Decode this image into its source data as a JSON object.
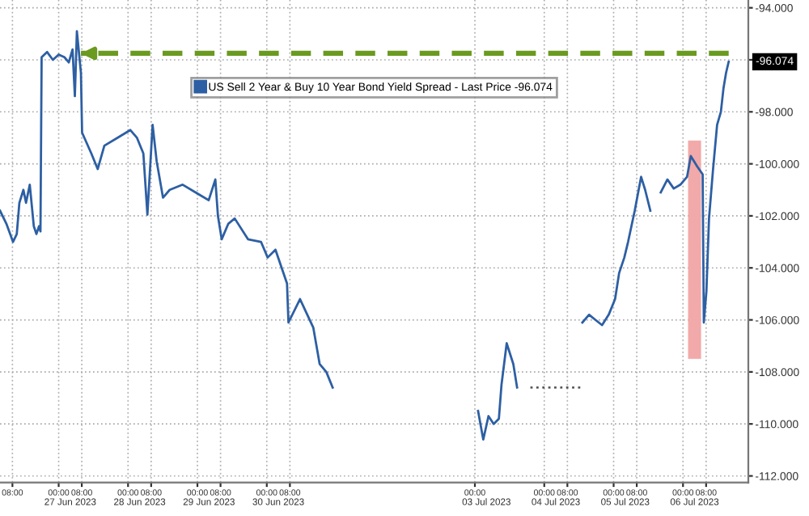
{
  "chart_data": {
    "type": "line",
    "ylim": [
      -112.25,
      -93.7
    ],
    "yticks": [
      {
        "value": -94,
        "label": "-94.000"
      },
      {
        "value": -96,
        "label": null
      },
      {
        "value": -98,
        "label": "-98.000"
      },
      {
        "value": -100,
        "label": "-100.000"
      },
      {
        "value": -102,
        "label": "-102.000"
      },
      {
        "value": -104,
        "label": "-104.000"
      },
      {
        "value": -106,
        "label": "-106.000"
      },
      {
        "value": -108,
        "label": "-108.000"
      },
      {
        "value": -110,
        "label": "-110.000"
      },
      {
        "value": -112,
        "label": "-112.000"
      }
    ],
    "xlim": [
      "2023-06-26T03:42",
      "2023-07-06T22:36"
    ],
    "xticks": [
      {
        "value": "2023-06-26T08:00",
        "label": "08:00"
      },
      {
        "value": "2023-06-27T00:00",
        "label": "00:00"
      },
      {
        "value": "2023-06-27T08:00",
        "label": "08:00"
      },
      {
        "value": "2023-06-28T00:00",
        "label": "00:00"
      },
      {
        "value": "2023-06-28T08:00",
        "label": "08:00"
      },
      {
        "value": "2023-06-29T00:00",
        "label": "00:00"
      },
      {
        "value": "2023-06-29T08:00",
        "label": "08:00"
      },
      {
        "value": "2023-06-30T00:00",
        "label": "00:00"
      },
      {
        "value": "2023-06-30T08:00",
        "label": "08:00"
      },
      {
        "value": "2023-07-03T00:00",
        "label": "00:00"
      },
      {
        "value": "2023-07-04T00:00",
        "label": "00:00"
      },
      {
        "value": "2023-07-04T08:00",
        "label": "08:00"
      },
      {
        "value": "2023-07-05T00:00",
        "label": "00:00"
      },
      {
        "value": "2023-07-05T08:00",
        "label": "08:00"
      },
      {
        "value": "2023-07-06T00:00",
        "label": "00:00"
      },
      {
        "value": "2023-07-06T08:00",
        "label": "08:00"
      }
    ],
    "x2lim": [
      "2023-06-26T03:42",
      "2023-07-06T22:36"
    ],
    "x2ticks": [
      {
        "value": "2023-06-27T04:00",
        "label": "27 Jun 2023"
      },
      {
        "value": "2023-06-28T04:00",
        "label": "28 Jun 2023"
      },
      {
        "value": "2023-06-29T04:00",
        "label": "29 Jun 2023"
      },
      {
        "value": "2023-06-30T04:00",
        "label": "30 Jun 2023"
      },
      {
        "value": "2023-07-03T04:00",
        "label": "03 Jul 2023"
      },
      {
        "value": "2023-07-04T04:00",
        "label": "04 Jul 2023"
      },
      {
        "value": "2023-07-05T04:00",
        "label": "05 Jul 2023"
      },
      {
        "value": "2023-07-06T04:00",
        "label": "06 Jul 2023"
      }
    ],
    "grid": true,
    "legend": "top",
    "series": [
      {
        "type": "bar",
        "color": "#f2a9a9",
        "x": [
          "2023-07-06T04:00"
        ],
        "base": [
          -107.5
        ],
        "values": [
          8.4
        ]
      },
      {
        "name": "US Sell 2 Year & Buy 10 Year Bond Yield Spread - Last Price -96.074",
        "color": "#2d5fa3",
        "line_style": "solid",
        "x": [
          "2023-06-26T03:42",
          "2023-06-26T05:54",
          "2023-06-26T08:12",
          "2023-06-26T09:30",
          "2023-06-26T10:24",
          "2023-06-26T11:48",
          "2023-06-26T12:42",
          "2023-06-26T14:00",
          "2023-06-26T15:24",
          "2023-06-26T16:18",
          "2023-06-26T17:12",
          "2023-06-26T17:42",
          "2023-06-26T18:06",
          "2023-06-26T20:00",
          "2023-06-26T22:00",
          "2023-06-27T00:00",
          "2023-06-27T02:00",
          "2023-06-27T03:30",
          "2023-06-27T04:48",
          "2023-06-27T05:36",
          "2023-06-27T06:18",
          "2023-06-27T07:42",
          "2023-06-27T08:06",
          "2023-06-27T11:18",
          "2023-06-27T13:30",
          "2023-06-27T15:48",
          "2023-06-27T20:18",
          "2023-06-28T00:48",
          "2023-06-28T03:06",
          "2023-06-28T05:18",
          "2023-06-28T06:42",
          "2023-06-28T08:30",
          "2023-06-28T09:54",
          "2023-06-28T12:06",
          "2023-06-28T14:24",
          "2023-06-28T18:54",
          "2023-06-28T23:24",
          "2023-06-29T03:54",
          "2023-06-29T06:12",
          "2023-06-29T07:06",
          "2023-06-29T08:24",
          "2023-06-29T10:42",
          "2023-06-29T12:54",
          "2023-06-29T17:30",
          "2023-06-29T22:00",
          "2023-06-30T00:18",
          "2023-06-30T03:00",
          "2023-06-30T07:00",
          "2023-06-30T07:30",
          "2023-06-30T11:30",
          "2023-06-30T16:06",
          "2023-06-30T18:18",
          "2023-06-30T20:36",
          "2023-06-30T22:48",
          "2023-07-01T12:00",
          "2023-07-03T01:06",
          "2023-07-03T02:24",
          "2023-07-03T02:54",
          "2023-07-03T04:42",
          "2023-07-03T06:30",
          "2023-07-03T08:18",
          "2023-07-03T09:12",
          "2023-07-03T11:00",
          "2023-07-03T13:18",
          "2023-07-03T14:36",
          "2023-07-04T02:00",
          "2023-07-04T13:12",
          "2023-07-04T15:30",
          "2023-07-04T17:42",
          "2023-07-04T20:00",
          "2023-07-04T22:18",
          "2023-07-05T00:30",
          "2023-07-05T01:54",
          "2023-07-05T03:42",
          "2023-07-05T05:00",
          "2023-07-05T07:18",
          "2023-07-05T09:30",
          "2023-07-05T10:54",
          "2023-07-05T12:42",
          "2023-07-05T14:30",
          "2023-07-05T16:18",
          "2023-07-05T18:36",
          "2023-07-05T20:48",
          "2023-07-05T23:06",
          "2023-07-06T01:24",
          "2023-07-06T02:42",
          "2023-07-06T04:54",
          "2023-07-06T06:48",
          "2023-07-06T07:12",
          "2023-07-06T08:06",
          "2023-07-06T09:00",
          "2023-07-06T10:24",
          "2023-07-06T11:48",
          "2023-07-06T13:06",
          "2023-07-06T14:00",
          "2023-07-06T14:54",
          "2023-07-06T15:48"
        ],
        "values": [
          -101.8,
          -102.3,
          -103.0,
          -102.7,
          -101.5,
          -101.0,
          -101.5,
          -100.8,
          -102.4,
          -102.7,
          -102.4,
          -102.6,
          -95.9,
          -95.7,
          -96.0,
          -95.8,
          -95.9,
          -96.1,
          -95.6,
          -97.4,
          -94.9,
          -96.5,
          -98.8,
          -99.6,
          -100.2,
          -99.3,
          -99.0,
          -98.7,
          -99.0,
          -99.6,
          -101.95,
          -98.5,
          -99.9,
          -101.3,
          -101.0,
          -100.8,
          -101.1,
          -101.4,
          -100.6,
          -102.0,
          -102.9,
          -102.3,
          -102.1,
          -102.9,
          -103.0,
          -103.6,
          -103.3,
          -104.6,
          -106.1,
          -105.2,
          -106.3,
          -107.7,
          -108.0,
          -108.6,
          null,
          -109.5,
          -110.3,
          -110.6,
          -109.7,
          -110.0,
          -109.8,
          -108.5,
          -106.9,
          -107.7,
          -108.6,
          null,
          -106.1,
          -105.8,
          -106.0,
          -106.2,
          -105.8,
          -105.2,
          -104.2,
          -103.6,
          -103.0,
          -101.8,
          -100.5,
          -101.0,
          -101.8,
          null,
          -101.1,
          -100.6,
          -100.95,
          -100.8,
          -100.5,
          -99.7,
          -100.1,
          -100.4,
          -106.1,
          -104.9,
          -102.1,
          -100.2,
          -98.5,
          -98.0,
          -97.1,
          -96.5,
          -96.074
        ]
      },
      {
        "color": "#555555",
        "line_style": "dotted",
        "x": [
          "2023-07-03T19:12",
          "2023-07-04T13:12"
        ],
        "values": [
          -108.6,
          -108.6
        ]
      },
      {
        "color": "#6a9a1f",
        "line_style": "dashed",
        "x": [
          "2023-07-06T15:48",
          "2023-06-27T07:42"
        ],
        "values": [
          -95.75,
          -95.75
        ]
      }
    ],
    "annotations": [
      {
        "text": "-96.074",
        "x": "2023-07-06T15:48",
        "y": -96.074
      }
    ]
  }
}
